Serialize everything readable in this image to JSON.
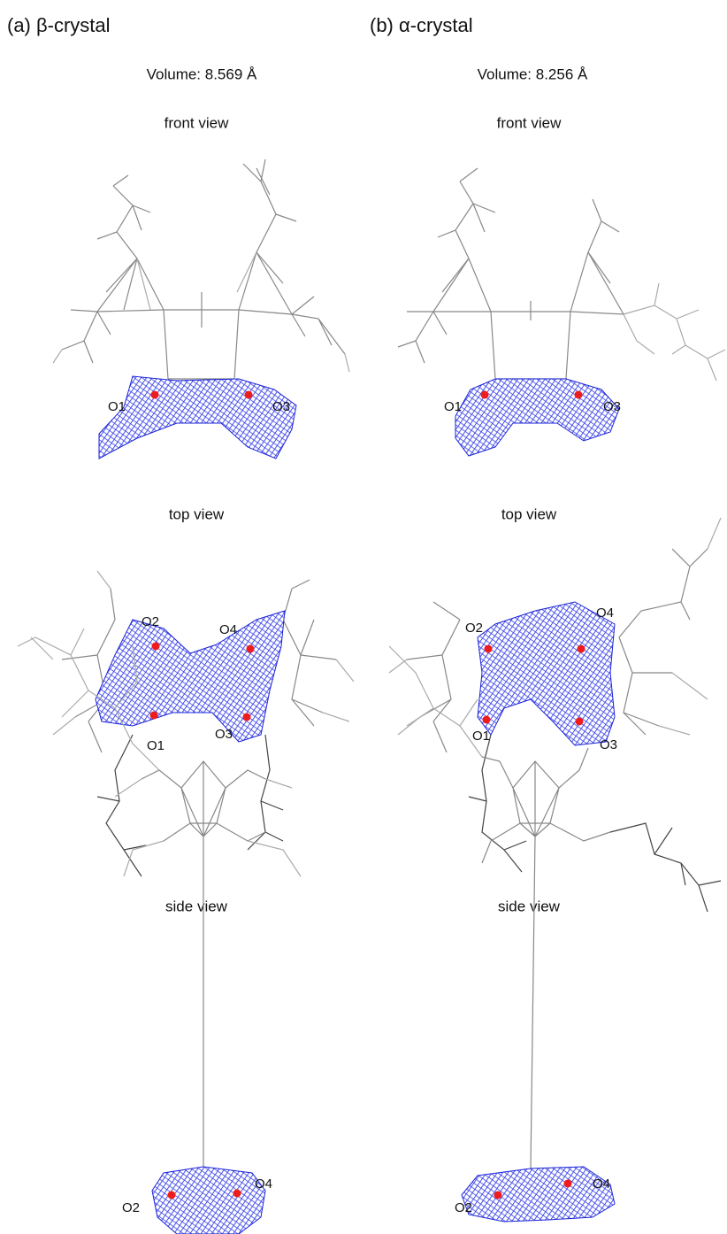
{
  "panels": [
    {
      "title": "(a) β-crystal",
      "volume": "Volume: 8.569 Å",
      "views": [
        {
          "label": "front view",
          "atoms": [
            "O1",
            "O3"
          ]
        },
        {
          "label": "top view",
          "atoms": [
            "O2",
            "O4",
            "O1",
            "O3"
          ]
        },
        {
          "label": "side view",
          "atoms": [
            "O2",
            "O4"
          ]
        }
      ]
    },
    {
      "title": "(b) α-crystal",
      "volume": "Volume: 8.256 Å",
      "views": [
        {
          "label": "front view",
          "atoms": [
            "O1",
            "O3"
          ]
        },
        {
          "label": "top view",
          "atoms": [
            "O2",
            "O4",
            "O1",
            "O3"
          ]
        },
        {
          "label": "side view",
          "atoms": [
            "O2",
            "O4"
          ]
        }
      ]
    }
  ]
}
